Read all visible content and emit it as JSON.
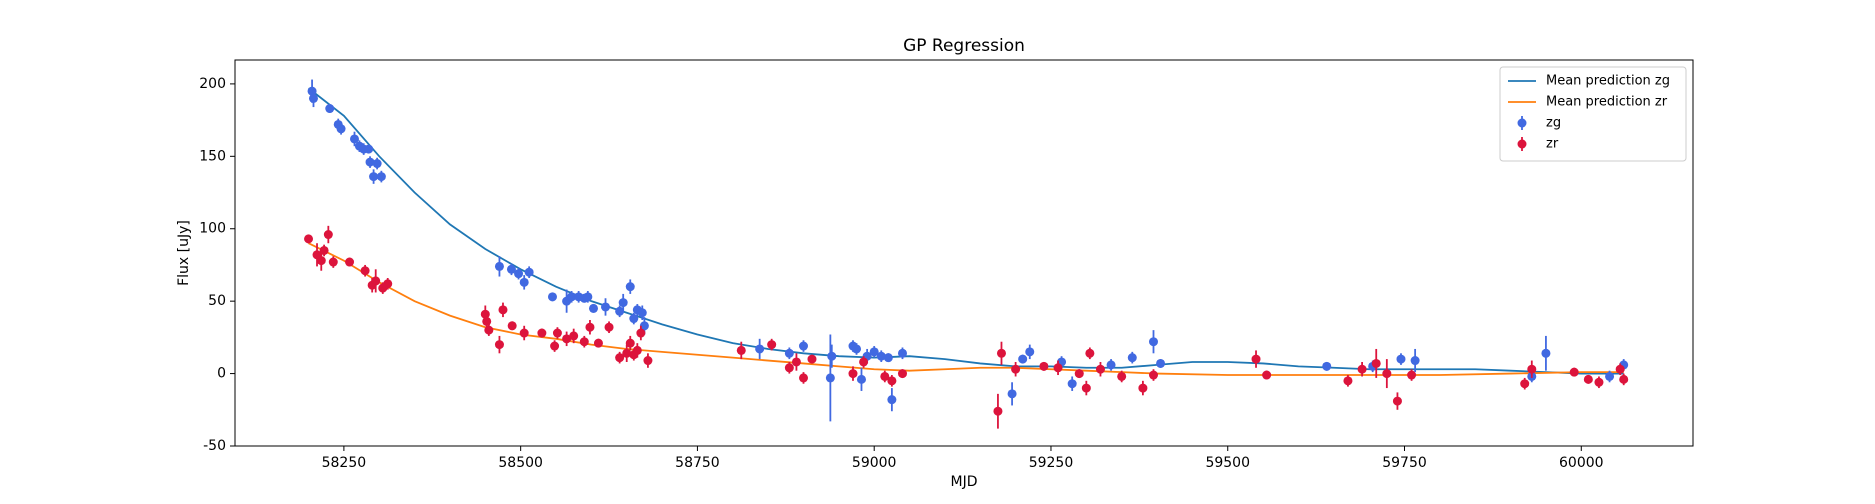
{
  "chart_data": {
    "type": "scatter",
    "title": "GP Regression",
    "xlabel": "MJD",
    "ylabel": "Flux [uJy]",
    "xlim": [
      58096,
      60158
    ],
    "ylim": [
      -50,
      216.5
    ],
    "xticks": [
      58250,
      58500,
      58750,
      59000,
      59250,
      59500,
      59750,
      60000
    ],
    "yticks": [
      -50,
      0,
      50,
      100,
      150,
      200
    ],
    "legend": "upper right",
    "series": [
      {
        "name": "Mean prediction zg",
        "type": "line",
        "color": "#1f77b4",
        "x": [
          58200,
          58250,
          58300,
          58350,
          58400,
          58450,
          58500,
          58550,
          58600,
          58650,
          58700,
          58750,
          58800,
          58850,
          58900,
          58950,
          59000,
          59050,
          59100,
          59150,
          59200,
          59250,
          59300,
          59350,
          59400,
          59450,
          59500,
          59550,
          59600,
          59650,
          59700,
          59750,
          59800,
          59850,
          59900,
          59950,
          60000,
          60060
        ],
        "values": [
          197,
          178,
          150,
          125,
          103,
          86,
          72,
          60,
          50,
          42,
          34,
          27,
          21,
          17,
          14,
          12,
          11,
          12,
          10,
          7,
          5,
          5,
          4,
          4,
          6,
          8,
          8,
          7,
          5,
          4,
          3,
          3,
          3,
          3,
          2,
          1,
          0,
          0
        ]
      },
      {
        "name": "Mean prediction zr",
        "type": "line",
        "color": "#ff7f0e",
        "x": [
          58200,
          58250,
          58300,
          58350,
          58400,
          58450,
          58500,
          58550,
          58600,
          58650,
          58700,
          58750,
          58800,
          58850,
          58900,
          58950,
          59000,
          59050,
          59100,
          59150,
          59200,
          59250,
          59300,
          59350,
          59400,
          59500,
          59600,
          59700,
          59800,
          59900,
          60000,
          60060
        ],
        "values": [
          90,
          78,
          63,
          50,
          40,
          32,
          27,
          24,
          20,
          17,
          15,
          13,
          11,
          9,
          7,
          5,
          3,
          2,
          3,
          4,
          4,
          3,
          2,
          1,
          0,
          -1,
          -1,
          -1,
          -1,
          0,
          1,
          1
        ]
      },
      {
        "name": "zg",
        "type": "errorbar",
        "color": "#4169e1",
        "x": [
          58205,
          58207,
          58230,
          58242,
          58246,
          58265,
          58272,
          58278,
          58285,
          58287,
          58292,
          58297,
          58303,
          58470,
          58487,
          58497,
          58505,
          58512,
          58545,
          58565,
          58572,
          58582,
          58590,
          58595,
          58603,
          58620,
          58640,
          58645,
          58655,
          58660,
          58665,
          58672,
          58675,
          58838,
          58880,
          58900,
          58938,
          58940,
          58970,
          58975,
          58982,
          58990,
          59000,
          59010,
          59020,
          59025,
          59040,
          59195,
          59210,
          59220,
          59265,
          59280,
          59335,
          59365,
          59395,
          59405,
          59640,
          59705,
          59745,
          59765,
          59930,
          59950,
          60040,
          60060
        ],
        "values": [
          195,
          190,
          183,
          172,
          169,
          162,
          157,
          155,
          155,
          146,
          136,
          145,
          136,
          74,
          72,
          69,
          63,
          70,
          53,
          50,
          53,
          53,
          52,
          53,
          45,
          46,
          43,
          49,
          60,
          38,
          44,
          42,
          33,
          17,
          14,
          19,
          -3,
          12,
          19,
          17,
          -4,
          12,
          15,
          12,
          11,
          -18,
          14,
          -14,
          10,
          15,
          8,
          -7,
          6,
          11,
          22,
          7,
          5,
          5,
          10,
          9,
          -2,
          14,
          -2,
          6
        ],
        "errors": [
          8,
          6,
          3,
          4,
          4,
          5,
          4,
          4,
          3,
          4,
          5,
          4,
          4,
          7,
          4,
          4,
          5,
          4,
          3,
          8,
          4,
          4,
          3,
          4,
          3,
          6,
          4,
          6,
          5,
          4,
          4,
          5,
          6,
          7,
          4,
          4,
          30,
          8,
          4,
          4,
          8,
          5,
          4,
          4,
          3,
          8,
          4,
          8,
          3,
          5,
          4,
          5,
          4,
          4,
          8,
          3,
          3,
          4,
          4,
          8,
          4,
          12,
          4,
          4
        ]
      },
      {
        "name": "zr",
        "type": "errorbar",
        "color": "#dc143c",
        "x": [
          58200,
          58212,
          58218,
          58222,
          58228,
          58235,
          58258,
          58280,
          58290,
          58295,
          58305,
          58312,
          58450,
          58452,
          58455,
          58470,
          58475,
          58488,
          58505,
          58530,
          58548,
          58552,
          58565,
          58575,
          58590,
          58598,
          58610,
          58625,
          58640,
          58650,
          58655,
          58660,
          58665,
          58670,
          58680,
          58812,
          58855,
          58880,
          58890,
          58900,
          58912,
          58970,
          58985,
          59015,
          59025,
          59040,
          59175,
          59180,
          59200,
          59240,
          59260,
          59290,
          59300,
          59305,
          59320,
          59350,
          59380,
          59395,
          59540,
          59555,
          59670,
          59690,
          59710,
          59725,
          59740,
          59760,
          59920,
          59930,
          59990,
          60010,
          60025,
          60055,
          60060
        ],
        "values": [
          93,
          82,
          78,
          85,
          96,
          77,
          77,
          71,
          61,
          64,
          59,
          62,
          41,
          36,
          30,
          20,
          44,
          33,
          28,
          28,
          19,
          28,
          24,
          26,
          22,
          32,
          21,
          32,
          11,
          14,
          21,
          13,
          16,
          28,
          9,
          16,
          20,
          4,
          8,
          -3,
          10,
          0,
          8,
          -2,
          -5,
          0,
          -26,
          14,
          3,
          5,
          4,
          0,
          -10,
          14,
          3,
          -2,
          -10,
          -1,
          10,
          -1,
          -5,
          3,
          7,
          0,
          -19,
          -1,
          -7,
          3,
          1,
          -4,
          -6,
          3,
          -4
        ],
        "errors": [
          3,
          8,
          7,
          4,
          6,
          4,
          3,
          4,
          5,
          8,
          4,
          4,
          6,
          5,
          4,
          6,
          5,
          3,
          5,
          3,
          4,
          4,
          5,
          5,
          4,
          5,
          3,
          4,
          4,
          6,
          5,
          4,
          5,
          5,
          5,
          6,
          4,
          4,
          6,
          4,
          3,
          5,
          4,
          4,
          4,
          3,
          12,
          8,
          5,
          3,
          5,
          3,
          5,
          4,
          5,
          4,
          5,
          4,
          6,
          3,
          4,
          5,
          10,
          10,
          6,
          4,
          4,
          6,
          3,
          3,
          4,
          4,
          4
        ]
      }
    ]
  }
}
